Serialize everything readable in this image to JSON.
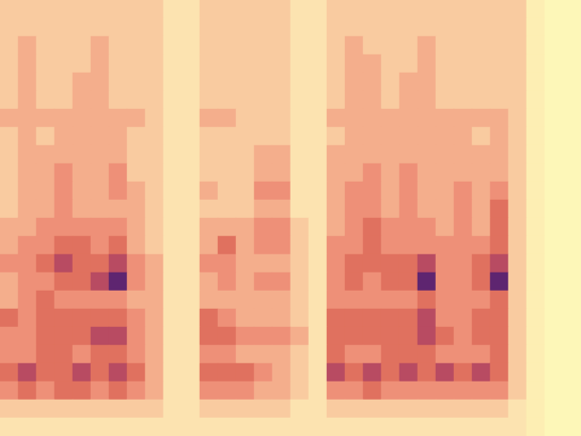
{
  "chart_data": {
    "type": "heatmap",
    "tick_labels": false,
    "zlim": [
      0,
      9
    ],
    "cells": [
      [
        3,
        3,
        3,
        3,
        3,
        3,
        3,
        3,
        3,
        2,
        2,
        3,
        3,
        3,
        3,
        3,
        2,
        2,
        3,
        3,
        3,
        3,
        3,
        3,
        3,
        3,
        3,
        3,
        3,
        1,
        0,
        0
      ],
      [
        3,
        3,
        3,
        3,
        3,
        3,
        3,
        3,
        3,
        2,
        2,
        3,
        3,
        3,
        3,
        3,
        2,
        2,
        3,
        3,
        3,
        3,
        3,
        3,
        3,
        3,
        3,
        3,
        3,
        1,
        0,
        0
      ],
      [
        3,
        4,
        3,
        3,
        3,
        4,
        3,
        3,
        3,
        2,
        2,
        3,
        3,
        3,
        3,
        3,
        2,
        2,
        3,
        4,
        3,
        3,
        3,
        4,
        3,
        3,
        3,
        3,
        3,
        1,
        0,
        0
      ],
      [
        3,
        4,
        3,
        3,
        3,
        4,
        3,
        3,
        3,
        2,
        2,
        3,
        3,
        3,
        3,
        3,
        2,
        2,
        3,
        4,
        4,
        3,
        3,
        4,
        3,
        3,
        3,
        3,
        3,
        1,
        0,
        0
      ],
      [
        3,
        4,
        3,
        3,
        4,
        4,
        3,
        3,
        3,
        2,
        2,
        3,
        3,
        3,
        3,
        3,
        2,
        2,
        3,
        4,
        4,
        3,
        4,
        4,
        3,
        3,
        3,
        3,
        3,
        1,
        0,
        0
      ],
      [
        3,
        4,
        3,
        3,
        4,
        4,
        3,
        3,
        3,
        2,
        2,
        3,
        3,
        3,
        3,
        3,
        2,
        2,
        3,
        4,
        4,
        3,
        4,
        4,
        3,
        3,
        3,
        3,
        3,
        1,
        0,
        0
      ],
      [
        4,
        4,
        4,
        4,
        4,
        4,
        4,
        4,
        3,
        2,
        2,
        4,
        4,
        3,
        3,
        3,
        2,
        2,
        4,
        4,
        4,
        4,
        4,
        4,
        4,
        4,
        4,
        4,
        3,
        1,
        0,
        0
      ],
      [
        3,
        4,
        3,
        4,
        4,
        4,
        4,
        3,
        3,
        2,
        2,
        3,
        3,
        3,
        3,
        3,
        2,
        2,
        3,
        4,
        4,
        4,
        4,
        4,
        4,
        4,
        3,
        4,
        3,
        1,
        0,
        0
      ],
      [
        3,
        4,
        4,
        4,
        4,
        4,
        4,
        3,
        3,
        2,
        2,
        3,
        3,
        3,
        4,
        4,
        2,
        2,
        4,
        4,
        4,
        4,
        4,
        4,
        4,
        4,
        4,
        4,
        3,
        1,
        0,
        0
      ],
      [
        3,
        4,
        4,
        5,
        4,
        4,
        5,
        3,
        3,
        2,
        2,
        3,
        3,
        3,
        4,
        4,
        2,
        2,
        4,
        4,
        5,
        4,
        5,
        4,
        4,
        4,
        4,
        4,
        3,
        1,
        0,
        0
      ],
      [
        3,
        4,
        4,
        5,
        4,
        4,
        5,
        4,
        3,
        2,
        2,
        4,
        3,
        3,
        5,
        5,
        2,
        2,
        4,
        5,
        5,
        4,
        5,
        4,
        4,
        5,
        4,
        5,
        3,
        1,
        0,
        0
      ],
      [
        3,
        4,
        4,
        5,
        4,
        4,
        4,
        4,
        3,
        2,
        2,
        3,
        3,
        3,
        4,
        4,
        2,
        2,
        4,
        5,
        5,
        4,
        5,
        4,
        4,
        5,
        4,
        6,
        3,
        1,
        0,
        0
      ],
      [
        4,
        4,
        5,
        5,
        5,
        5,
        5,
        4,
        3,
        2,
        2,
        4,
        4,
        4,
        5,
        5,
        3,
        2,
        4,
        5,
        6,
        5,
        5,
        5,
        4,
        5,
        4,
        6,
        3,
        1,
        0,
        0
      ],
      [
        4,
        5,
        5,
        6,
        6,
        5,
        6,
        4,
        3,
        2,
        2,
        4,
        6,
        4,
        5,
        5,
        3,
        2,
        5,
        5,
        6,
        5,
        5,
        5,
        5,
        5,
        5,
        6,
        3,
        1,
        0,
        0
      ],
      [
        5,
        5,
        6,
        7,
        6,
        6,
        7,
        5,
        4,
        2,
        2,
        5,
        5,
        4,
        4,
        4,
        3,
        2,
        5,
        6,
        6,
        6,
        6,
        7,
        5,
        5,
        6,
        7,
        3,
        1,
        0,
        0
      ],
      [
        4,
        5,
        5,
        6,
        6,
        7,
        8,
        5,
        4,
        2,
        2,
        4,
        5,
        4,
        5,
        5,
        3,
        2,
        5,
        6,
        5,
        6,
        6,
        8,
        5,
        5,
        6,
        8,
        3,
        1,
        0,
        0
      ],
      [
        4,
        5,
        6,
        5,
        5,
        5,
        5,
        4,
        4,
        2,
        2,
        4,
        4,
        4,
        4,
        4,
        3,
        2,
        5,
        5,
        5,
        5,
        5,
        6,
        5,
        5,
        5,
        6,
        3,
        1,
        0,
        0
      ],
      [
        6,
        5,
        6,
        6,
        6,
        6,
        6,
        5,
        4,
        2,
        2,
        6,
        5,
        4,
        4,
        4,
        3,
        2,
        6,
        6,
        6,
        6,
        6,
        7,
        5,
        5,
        6,
        6,
        3,
        1,
        0,
        0
      ],
      [
        5,
        5,
        6,
        6,
        6,
        7,
        7,
        5,
        4,
        2,
        2,
        6,
        6,
        5,
        5,
        5,
        4,
        2,
        6,
        6,
        6,
        6,
        6,
        7,
        6,
        5,
        6,
        6,
        3,
        1,
        0,
        0
      ],
      [
        5,
        5,
        6,
        6,
        5,
        6,
        6,
        5,
        4,
        2,
        2,
        5,
        5,
        4,
        4,
        4,
        3,
        2,
        6,
        5,
        5,
        6,
        6,
        6,
        5,
        5,
        5,
        6,
        3,
        1,
        0,
        0
      ],
      [
        6,
        7,
        6,
        6,
        7,
        6,
        7,
        6,
        4,
        2,
        2,
        6,
        6,
        6,
        5,
        4,
        3,
        2,
        7,
        6,
        7,
        6,
        7,
        6,
        7,
        6,
        7,
        6,
        3,
        1,
        0,
        0
      ],
      [
        5,
        6,
        5,
        6,
        6,
        5,
        6,
        5,
        4,
        2,
        2,
        5,
        5,
        5,
        4,
        4,
        3,
        2,
        5,
        5,
        6,
        5,
        5,
        5,
        5,
        5,
        5,
        5,
        3,
        1,
        0,
        0
      ],
      [
        3,
        3,
        3,
        3,
        3,
        3,
        3,
        3,
        3,
        2,
        2,
        3,
        3,
        3,
        3,
        3,
        2,
        2,
        3,
        3,
        3,
        3,
        3,
        3,
        3,
        3,
        3,
        3,
        2,
        1,
        0,
        0
      ],
      [
        2,
        2,
        2,
        2,
        2,
        2,
        2,
        2,
        2,
        2,
        2,
        2,
        2,
        2,
        2,
        2,
        2,
        2,
        2,
        2,
        2,
        2,
        2,
        2,
        2,
        2,
        2,
        2,
        2,
        1,
        0,
        0
      ]
    ]
  }
}
